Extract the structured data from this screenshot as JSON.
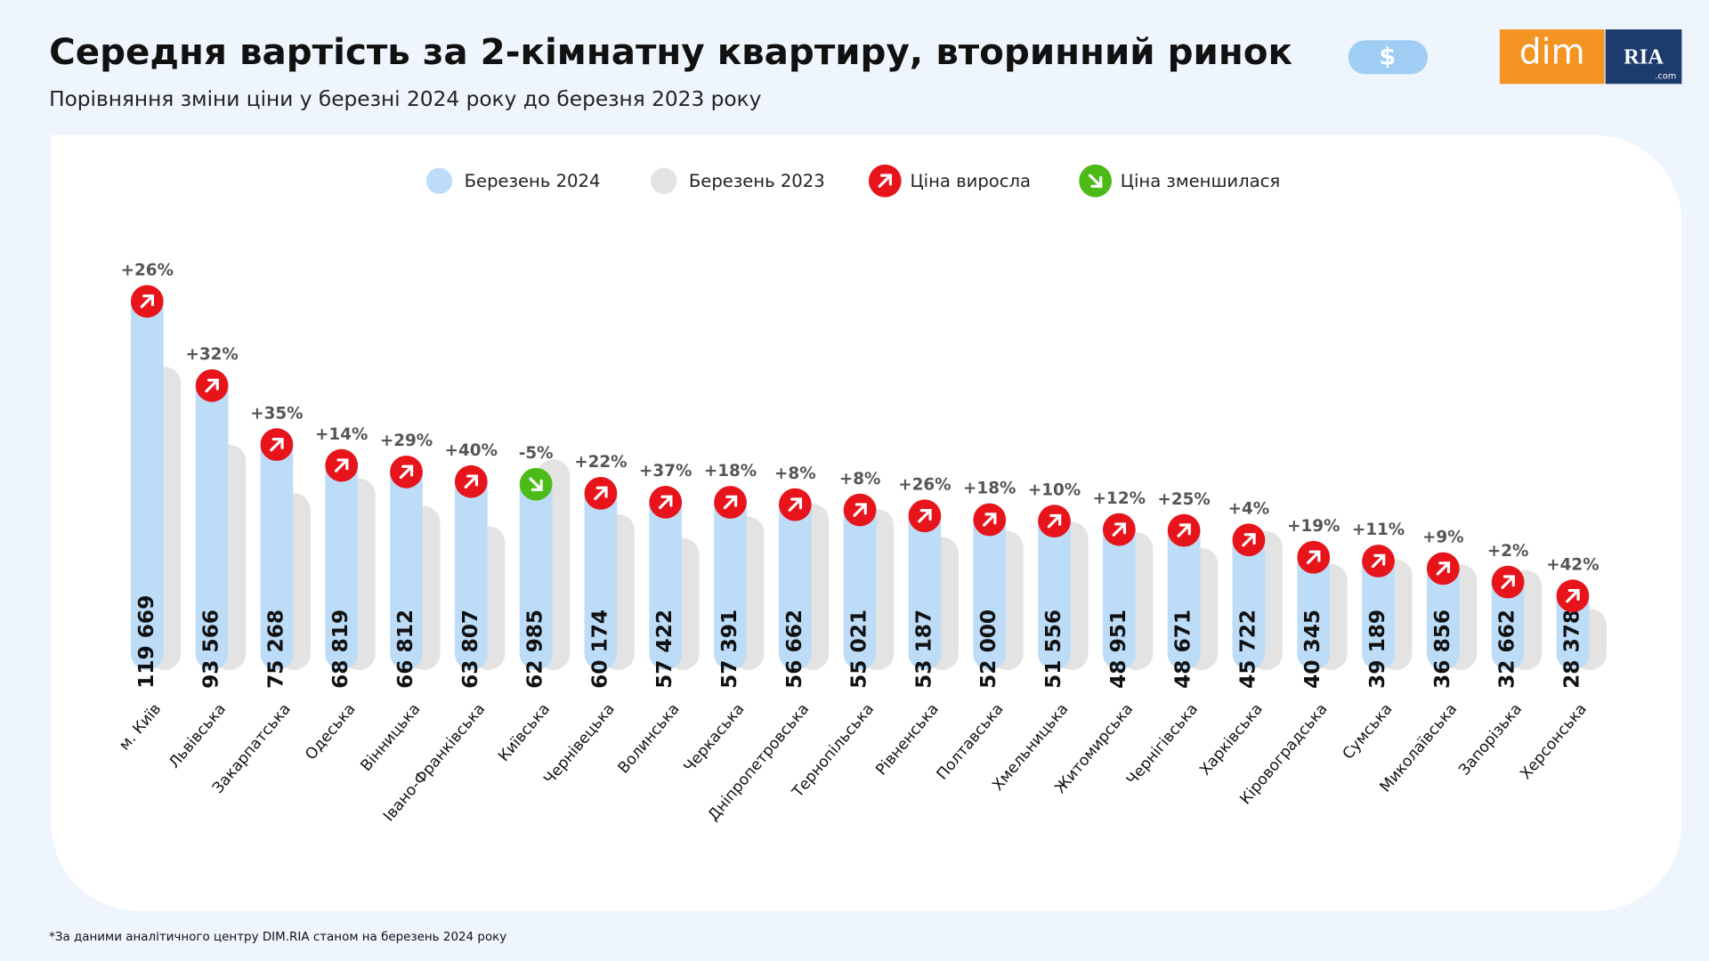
{
  "chart_data": {
    "type": "bar",
    "title": "Середня вартість за 2-кімнатну квартиру, вторинний ринок",
    "subtitle": "Порівняння зміни ціни у березні 2024 року до березня 2023 року",
    "badge": "$",
    "logo": {
      "left": "dim",
      "right": "RIA",
      "right_small": ".com"
    },
    "categories": [
      "м. Київ",
      "Львівська",
      "Закарпатська",
      "Одеська",
      "Вінницька",
      "Івано-Франківська",
      "Київська",
      "Чернівецька",
      "Волинська",
      "Черкаська",
      "Дніпропетровська",
      "Тернопільська",
      "Рівненська",
      "Полтавська",
      "Хмельницька",
      "Житомирська",
      "Чернігівська",
      "Харківська",
      "Кіровоградська",
      "Сумська",
      "Миколаївська",
      "Запорізька",
      "Херсонська"
    ],
    "series": [
      {
        "name": "Березень 2024",
        "color": "#bcdcf7",
        "values": [
          119669,
          93566,
          75268,
          68819,
          66812,
          63807,
          62985,
          60174,
          57422,
          57391,
          56662,
          55021,
          53187,
          52000,
          51556,
          48951,
          48671,
          45722,
          40345,
          39189,
          36856,
          32662,
          28378
        ],
        "value_labels": [
          "119 669",
          "93 566",
          "75 268",
          "68 819",
          "66 812",
          "63 807",
          "62 985",
          "60 174",
          "57 422",
          "57 391",
          "56 662",
          "55 021",
          "53 187",
          "52 000",
          "51 556",
          "48 951",
          "48 671",
          "45 722",
          "40 345",
          "39 189",
          "36 856",
          "32 662",
          "28 378"
        ]
      },
      {
        "name": "Березень 2023",
        "color": "#e3e3e3",
        "values": [
          95000,
          70900,
          55800,
          60400,
          51800,
          45600,
          66300,
          49300,
          41900,
          48600,
          52500,
          50900,
          42200,
          44100,
          46900,
          43700,
          38900,
          44000,
          33900,
          35300,
          33800,
          32000,
          20000
        ]
      }
    ],
    "changes": {
      "values": [
        26,
        32,
        35,
        14,
        29,
        40,
        -5,
        22,
        37,
        18,
        8,
        8,
        26,
        18,
        10,
        12,
        25,
        4,
        19,
        11,
        9,
        2,
        42
      ],
      "value_labels": [
        "+26%",
        "+32%",
        "+35%",
        "+14%",
        "+29%",
        "+40%",
        "-5%",
        "+22%",
        "+37%",
        "+18%",
        "+8%",
        "+8%",
        "+26%",
        "+18%",
        "+10%",
        "+12%",
        "+25%",
        "+4%",
        "+19%",
        "+11%",
        "+9%",
        "+2%",
        "+42%"
      ]
    },
    "change_legend": [
      {
        "name": "Ціна виросла",
        "color": "#e8141c"
      },
      {
        "name": "Ціна зменшилася",
        "color": "#4cbb17"
      }
    ],
    "ylim": [
      2000,
      130000
    ],
    "footnote": "*За даними аналітичного центру DIM.RIA станом на березень 2024 року"
  }
}
